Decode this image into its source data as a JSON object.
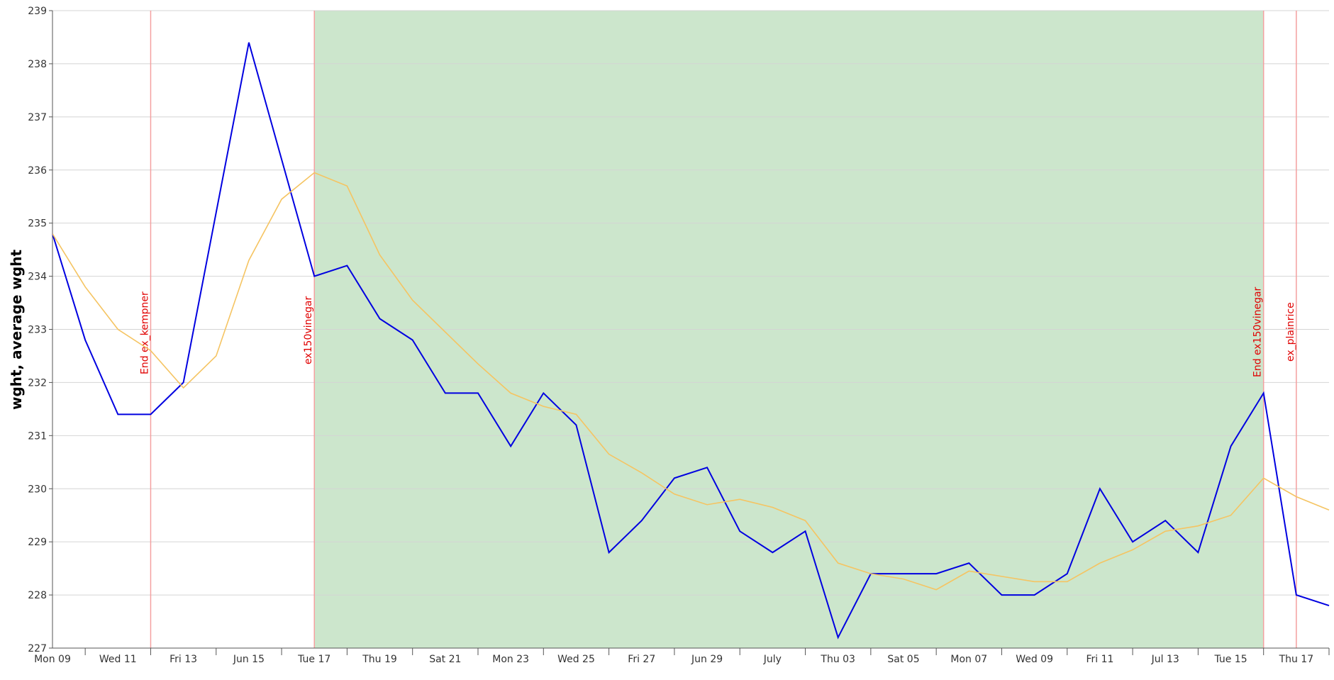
{
  "chart_data": {
    "type": "line",
    "ylabel": "wght, average wght",
    "ylim": [
      227,
      239
    ],
    "y_ticks": [
      227,
      228,
      229,
      230,
      231,
      232,
      233,
      234,
      235,
      236,
      237,
      238,
      239
    ],
    "x": [
      "2014-06-09",
      "2014-06-10",
      "2014-06-11",
      "2014-06-12",
      "2014-06-13",
      "2014-06-14",
      "2014-06-15",
      "2014-06-16",
      "2014-06-17",
      "2014-06-18",
      "2014-06-19",
      "2014-06-20",
      "2014-06-21",
      "2014-06-22",
      "2014-06-23",
      "2014-06-24",
      "2014-06-25",
      "2014-06-26",
      "2014-06-27",
      "2014-06-28",
      "2014-06-29",
      "2014-06-30",
      "2014-07-01",
      "2014-07-02",
      "2014-07-03",
      "2014-07-04",
      "2014-07-05",
      "2014-07-06",
      "2014-07-07",
      "2014-07-08",
      "2014-07-09",
      "2014-07-10",
      "2014-07-11",
      "2014-07-12",
      "2014-07-13",
      "2014-07-14",
      "2014-07-15",
      "2014-07-16",
      "2014-07-17",
      "2014-07-18"
    ],
    "xlim": [
      "2014-06-09",
      "2014-07-18"
    ],
    "x_ticks": [
      {
        "date": "2014-06-09",
        "label": "Mon 09"
      },
      {
        "date": "2014-06-11",
        "label": "Wed 11"
      },
      {
        "date": "2014-06-13",
        "label": "Fri 13"
      },
      {
        "date": "2014-06-15",
        "label": "Jun 15"
      },
      {
        "date": "2014-06-17",
        "label": "Tue 17"
      },
      {
        "date": "2014-06-19",
        "label": "Thu 19"
      },
      {
        "date": "2014-06-21",
        "label": "Sat 21"
      },
      {
        "date": "2014-06-23",
        "label": "Mon 23"
      },
      {
        "date": "2014-06-25",
        "label": "Wed 25"
      },
      {
        "date": "2014-06-27",
        "label": "Fri 27"
      },
      {
        "date": "2014-06-29",
        "label": "Jun 29"
      },
      {
        "date": "2014-07-01",
        "label": "July"
      },
      {
        "date": "2014-07-03",
        "label": "Thu 03"
      },
      {
        "date": "2014-07-05",
        "label": "Sat 05"
      },
      {
        "date": "2014-07-07",
        "label": "Mon 07"
      },
      {
        "date": "2014-07-09",
        "label": "Wed 09"
      },
      {
        "date": "2014-07-11",
        "label": "Fri 11"
      },
      {
        "date": "2014-07-13",
        "label": "Jul 13"
      },
      {
        "date": "2014-07-15",
        "label": "Tue 15"
      },
      {
        "date": "2014-07-17",
        "label": "Thu 17"
      }
    ],
    "series": [
      {
        "color": "#0000e0",
        "values": [
          234.8,
          232.8,
          231.4,
          231.4,
          232.0,
          235.2,
          238.4,
          236.2,
          234.0,
          234.2,
          233.2,
          232.8,
          231.8,
          231.8,
          230.8,
          231.8,
          231.2,
          228.8,
          229.4,
          230.2,
          230.4,
          229.2,
          228.8,
          229.2,
          227.2,
          228.4,
          228.4,
          228.4,
          228.6,
          228.0,
          228.0,
          228.4,
          230.0,
          229.0,
          229.4,
          228.8,
          230.8,
          231.8,
          228.0,
          227.8
        ]
      },
      {
        "color": "#f5c462",
        "values": [
          234.8,
          233.8,
          233.0,
          232.6,
          231.9,
          232.5,
          234.3,
          235.45,
          235.95,
          235.7,
          234.4,
          233.55,
          232.95,
          232.35,
          231.8,
          231.55,
          231.4,
          230.65,
          230.3,
          229.9,
          229.7,
          229.8,
          229.65,
          229.4,
          228.6,
          228.4,
          228.3,
          228.1,
          228.45,
          228.35,
          228.25,
          228.25,
          228.6,
          228.85,
          229.2,
          229.3,
          229.5,
          230.2,
          229.85,
          229.6
        ]
      }
    ],
    "shaded_regions": [
      {
        "from": "2014-06-17",
        "to": "2014-07-16",
        "color": "#cce6cc"
      }
    ],
    "annotations": [
      {
        "date": "2014-06-12",
        "label": "End ex_kempner"
      },
      {
        "date": "2014-06-17",
        "label": "ex150vinegar"
      },
      {
        "date": "2014-07-16",
        "label": "End ex150vinegar"
      },
      {
        "date": "2014-07-17",
        "label": "ex_plainrice"
      }
    ],
    "grid": true,
    "annotation_color": "#e00000",
    "annotation_line_color": "#f4a0a0"
  }
}
